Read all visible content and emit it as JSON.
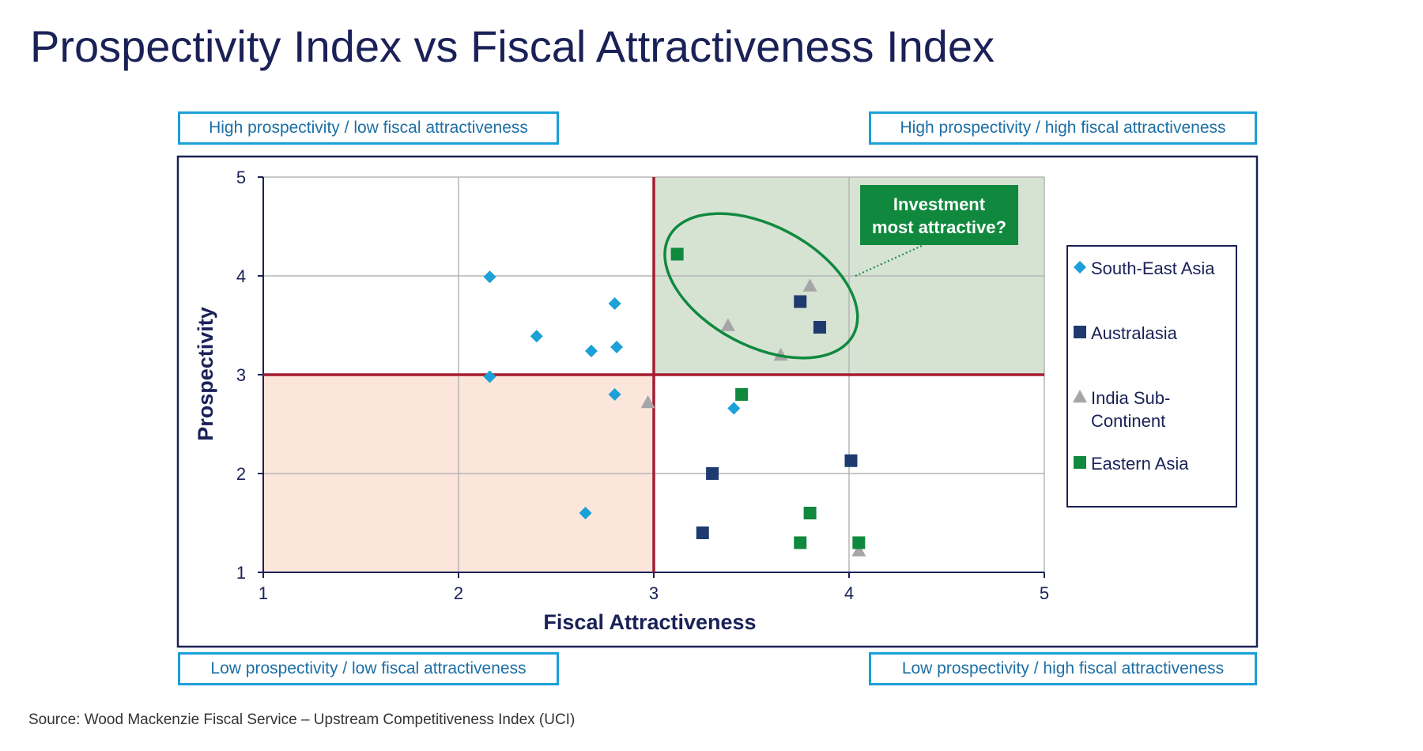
{
  "title": "Prospectivity Index vs Fiscal Attractiveness Index",
  "quadrant_labels": {
    "top_left": "High prospectivity / low fiscal attractiveness",
    "top_right": "High prospectivity / high fiscal attractiveness",
    "bottom_left": "Low prospectivity / low fiscal attractiveness",
    "bottom_right": "Low prospectivity / high fiscal attractiveness"
  },
  "callout": {
    "line1": "Investment",
    "line2": "most attractive?"
  },
  "source": "Source: Wood Mackenzie Fiscal Service – Upstream Competitiveness Index (UCI)",
  "colors": {
    "south_east_asia": "#1ba0d8",
    "australasia": "#1f3a6e",
    "india_sub_continent": "#a6a6a6",
    "eastern_asia": "#10893e",
    "divider": "#a51c30",
    "top_right_fill": "#d6e3d3",
    "bottom_left_fill": "#fce6dc",
    "callout_fill": "#10893e",
    "frame": "#1a2157"
  },
  "chart_data": {
    "type": "scatter",
    "title": "Prospectivity Index vs Fiscal Attractiveness Index",
    "xlabel": "Fiscal Attractiveness",
    "ylabel": "Prospectivity",
    "xlim": [
      1,
      5
    ],
    "ylim": [
      1,
      5
    ],
    "xticks": [
      "1",
      "2",
      "3",
      "4",
      "5"
    ],
    "yticks": [
      "1",
      "2",
      "3",
      "4",
      "5"
    ],
    "grid": true,
    "thresholds": {
      "x": 3,
      "y": 3
    },
    "legend_position": "right",
    "series": [
      {
        "name": "South-East Asia",
        "marker": "diamond",
        "points": [
          [
            2.16,
            3.99
          ],
          [
            2.4,
            3.39
          ],
          [
            2.68,
            3.24
          ],
          [
            2.8,
            3.72
          ],
          [
            2.81,
            3.28
          ],
          [
            2.16,
            2.98
          ],
          [
            2.8,
            2.8
          ],
          [
            3.41,
            2.66
          ],
          [
            2.65,
            1.6
          ]
        ]
      },
      {
        "name": "Australasia",
        "marker": "square",
        "points": [
          [
            3.75,
            3.74
          ],
          [
            3.85,
            3.48
          ],
          [
            4.01,
            2.13
          ],
          [
            3.3,
            2.0
          ],
          [
            3.25,
            1.4
          ]
        ]
      },
      {
        "name": "India Sub-Continent",
        "legend_line1": "India Sub-",
        "legend_line2": "Continent",
        "marker": "triangle",
        "points": [
          [
            3.8,
            3.9
          ],
          [
            3.38,
            3.5
          ],
          [
            3.65,
            3.2
          ],
          [
            2.97,
            2.72
          ],
          [
            4.05,
            1.22
          ]
        ]
      },
      {
        "name": "Eastern Asia",
        "marker": "square",
        "points": [
          [
            3.12,
            4.22
          ],
          [
            3.45,
            2.8
          ],
          [
            3.8,
            1.6
          ],
          [
            3.75,
            1.3
          ],
          [
            4.05,
            1.3
          ]
        ]
      }
    ]
  }
}
